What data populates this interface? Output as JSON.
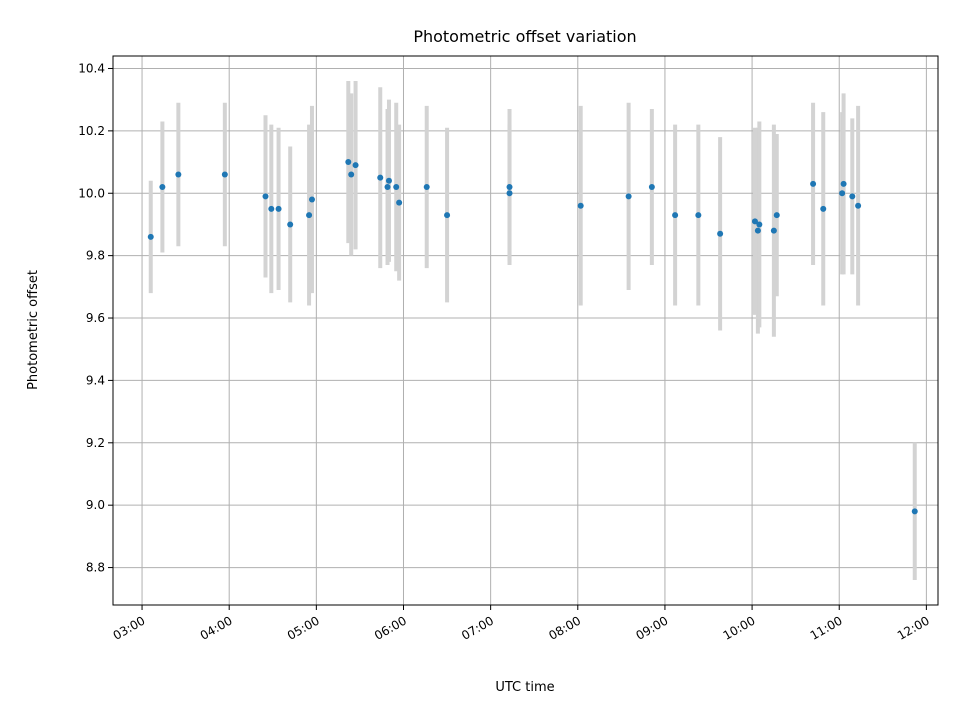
{
  "chart_data": {
    "type": "scatter",
    "title": "Photometric offset variation",
    "xlabel": "UTC time",
    "ylabel": "Photometric offset",
    "x_axis": "time (hours UTC)",
    "xlim": [
      "02:40",
      "12:08"
    ],
    "ylim": [
      8.68,
      10.44
    ],
    "x_ticks": [
      "03:00",
      "04:00",
      "05:00",
      "06:00",
      "07:00",
      "08:00",
      "09:00",
      "10:00",
      "11:00",
      "12:00"
    ],
    "y_ticks": [
      8.8,
      9.0,
      9.2,
      9.4,
      9.6,
      9.8,
      10.0,
      10.2,
      10.4
    ],
    "y_tick_labels": [
      "8.8",
      "9.0",
      "9.2",
      "9.4",
      "9.6",
      "9.8",
      "10.0",
      "10.2",
      "10.4"
    ],
    "grid": true,
    "colors": {
      "point": "#1f77b4",
      "errorbar": "#d3d3d3"
    },
    "points": [
      {
        "t": "03:06",
        "y": 9.86,
        "err": 0.18
      },
      {
        "t": "03:14",
        "y": 10.02,
        "err": 0.21
      },
      {
        "t": "03:25",
        "y": 10.06,
        "err": 0.23
      },
      {
        "t": "03:57",
        "y": 10.06,
        "err": 0.23
      },
      {
        "t": "04:25",
        "y": 9.99,
        "err": 0.26
      },
      {
        "t": "04:29",
        "y": 9.95,
        "err": 0.27
      },
      {
        "t": "04:34",
        "y": 9.95,
        "err": 0.26
      },
      {
        "t": "04:42",
        "y": 9.9,
        "err": 0.25
      },
      {
        "t": "04:55",
        "y": 9.93,
        "err": 0.29
      },
      {
        "t": "04:57",
        "y": 9.98,
        "err": 0.3
      },
      {
        "t": "05:22",
        "y": 10.1,
        "err": 0.26
      },
      {
        "t": "05:24",
        "y": 10.06,
        "err": 0.26
      },
      {
        "t": "05:27",
        "y": 10.09,
        "err": 0.27
      },
      {
        "t": "05:44",
        "y": 10.05,
        "err": 0.29
      },
      {
        "t": "05:49",
        "y": 10.02,
        "err": 0.25
      },
      {
        "t": "05:50",
        "y": 10.04,
        "err": 0.26
      },
      {
        "t": "05:55",
        "y": 10.02,
        "err": 0.27
      },
      {
        "t": "05:57",
        "y": 9.97,
        "err": 0.25
      },
      {
        "t": "06:16",
        "y": 10.02,
        "err": 0.26
      },
      {
        "t": "06:30",
        "y": 9.93,
        "err": 0.28
      },
      {
        "t": "07:13",
        "y": 10.02,
        "err": 0.25
      },
      {
        "t": "07:13",
        "y": 10.0,
        "err": 0.22
      },
      {
        "t": "08:02",
        "y": 9.96,
        "err": 0.32
      },
      {
        "t": "08:35",
        "y": 9.99,
        "err": 0.3
      },
      {
        "t": "08:51",
        "y": 10.02,
        "err": 0.25
      },
      {
        "t": "09:07",
        "y": 9.93,
        "err": 0.29
      },
      {
        "t": "09:23",
        "y": 9.93,
        "err": 0.29
      },
      {
        "t": "09:38",
        "y": 9.87,
        "err": 0.31
      },
      {
        "t": "10:02",
        "y": 9.91,
        "err": 0.3
      },
      {
        "t": "10:04",
        "y": 9.88,
        "err": 0.33
      },
      {
        "t": "10:05",
        "y": 9.9,
        "err": 0.33
      },
      {
        "t": "10:15",
        "y": 9.88,
        "err": 0.34
      },
      {
        "t": "10:17",
        "y": 9.93,
        "err": 0.26
      },
      {
        "t": "10:42",
        "y": 10.03,
        "err": 0.26
      },
      {
        "t": "10:49",
        "y": 9.95,
        "err": 0.31
      },
      {
        "t": "11:02",
        "y": 10.0,
        "err": 0.26
      },
      {
        "t": "11:03",
        "y": 10.03,
        "err": 0.29
      },
      {
        "t": "11:09",
        "y": 9.99,
        "err": 0.25
      },
      {
        "t": "11:13",
        "y": 9.96,
        "err": 0.32
      },
      {
        "t": "11:52",
        "y": 8.98,
        "err": 0.22
      }
    ]
  }
}
